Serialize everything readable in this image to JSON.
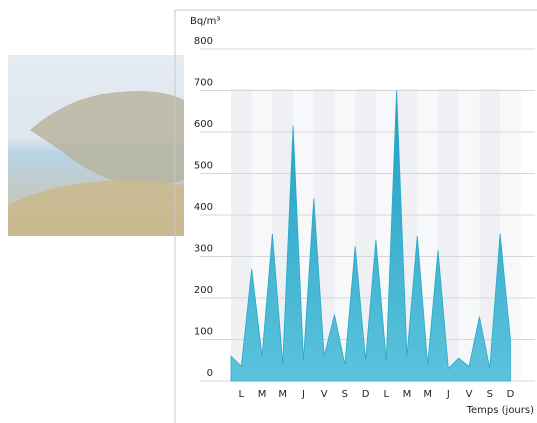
{
  "chart_data": {
    "type": "area",
    "ylabel": "Bq/m³",
    "xlabel": "Temps (jours)",
    "categories": [
      null,
      "L",
      null,
      "M",
      null,
      "M",
      null,
      "J",
      null,
      "V",
      null,
      "S",
      null,
      "D",
      null,
      "L",
      null,
      "M",
      null,
      "M",
      null,
      "J",
      null,
      "V",
      null,
      "S",
      null,
      "D"
    ],
    "values": [
      60,
      35,
      270,
      60,
      355,
      40,
      615,
      50,
      440,
      60,
      160,
      40,
      325,
      50,
      340,
      50,
      700,
      60,
      350,
      40,
      315,
      30,
      55,
      35,
      155,
      30,
      355,
      100
    ],
    "color": "#2aa8c9",
    "ylim": [
      0,
      800
    ],
    "yticks": [
      0,
      100,
      200,
      300,
      400,
      500,
      600,
      700,
      800
    ],
    "grid": true
  }
}
